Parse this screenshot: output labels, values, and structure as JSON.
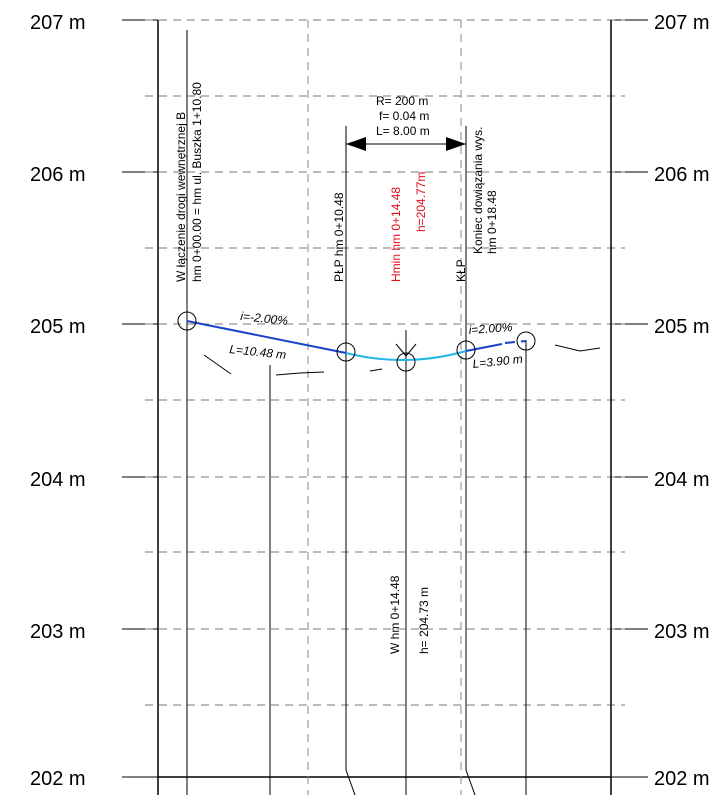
{
  "elevation_labels": [
    "207 m",
    "206 m",
    "205 m",
    "204 m",
    "203 m",
    "202 m"
  ],
  "labels": {
    "start": [
      "W łączenie drogi wewnętrznej B",
      "hm 0+00.00 = hm ul. Buszka 1+10.80"
    ],
    "plp": "PŁP  hm 0+10.48",
    "hmin": [
      "Hmin  hm 0+14.48",
      "h=204.77m"
    ],
    "klp": "KŁP",
    "end": [
      "Koniec dowiązania wys.",
      "hm 0+18.48"
    ],
    "curve_params": [
      "R= 200 m",
      "f= 0.04 m",
      "L= 8.00 m"
    ],
    "grade_left": "i=-2.00%",
    "length_left": "L=10.48 m",
    "grade_right": "i=2.00%",
    "length_right": "L=3.90 m",
    "low_point": [
      "W  hm 0+14.48",
      "h= 204.73 m"
    ]
  },
  "colors": {
    "grade_line": "#1a44c8",
    "vertical_curve": "#22b8e6",
    "highlight_text": "#e10f1a",
    "grid": "#7a7a7a"
  }
}
